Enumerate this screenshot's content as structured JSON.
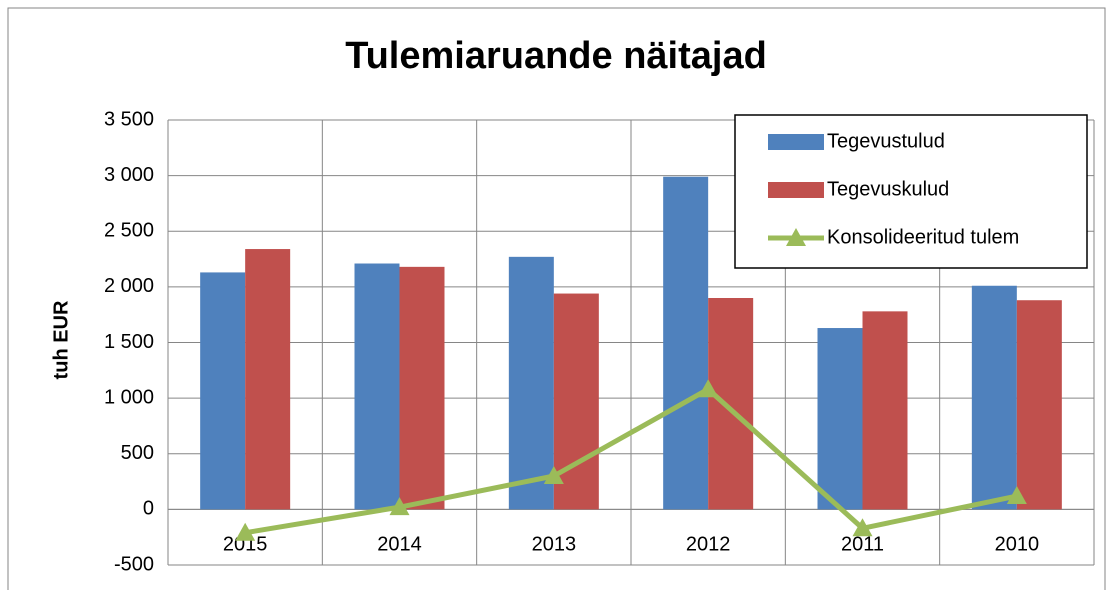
{
  "chart_data": {
    "type": "bar_line",
    "title": "Tulemiaruande näitajad",
    "y_axis_label": "tuh EUR",
    "categories": [
      "2015",
      "2014",
      "2013",
      "2012",
      "2011",
      "2010"
    ],
    "series": [
      {
        "name": "Tegevustulud",
        "color": "#4f81bd",
        "type": "bar",
        "values": [
          2130,
          2210,
          2270,
          2990,
          1630,
          2010
        ]
      },
      {
        "name": "Tegevuskulud",
        "color": "#c0504d",
        "type": "bar",
        "values": [
          2340,
          2180,
          1940,
          1900,
          1780,
          1880
        ]
      },
      {
        "name": "Konsolideeritud tulem",
        "color": "#9bbb59",
        "type": "line",
        "values": [
          -210,
          20,
          300,
          1080,
          -170,
          120
        ]
      }
    ],
    "ylim": [
      -500,
      3500
    ],
    "yticks": [
      -500,
      0,
      500,
      {
        "value": 1000,
        "label": "1 000"
      },
      {
        "value": 1500,
        "label": "1 500"
      },
      {
        "value": 2000,
        "label": "2 000"
      },
      {
        "value": 2500,
        "label": "2 500"
      },
      {
        "value": 3000,
        "label": "3 000"
      },
      {
        "value": 3500,
        "label": "3 500"
      }
    ],
    "grid": true,
    "legend": "upper-right"
  }
}
